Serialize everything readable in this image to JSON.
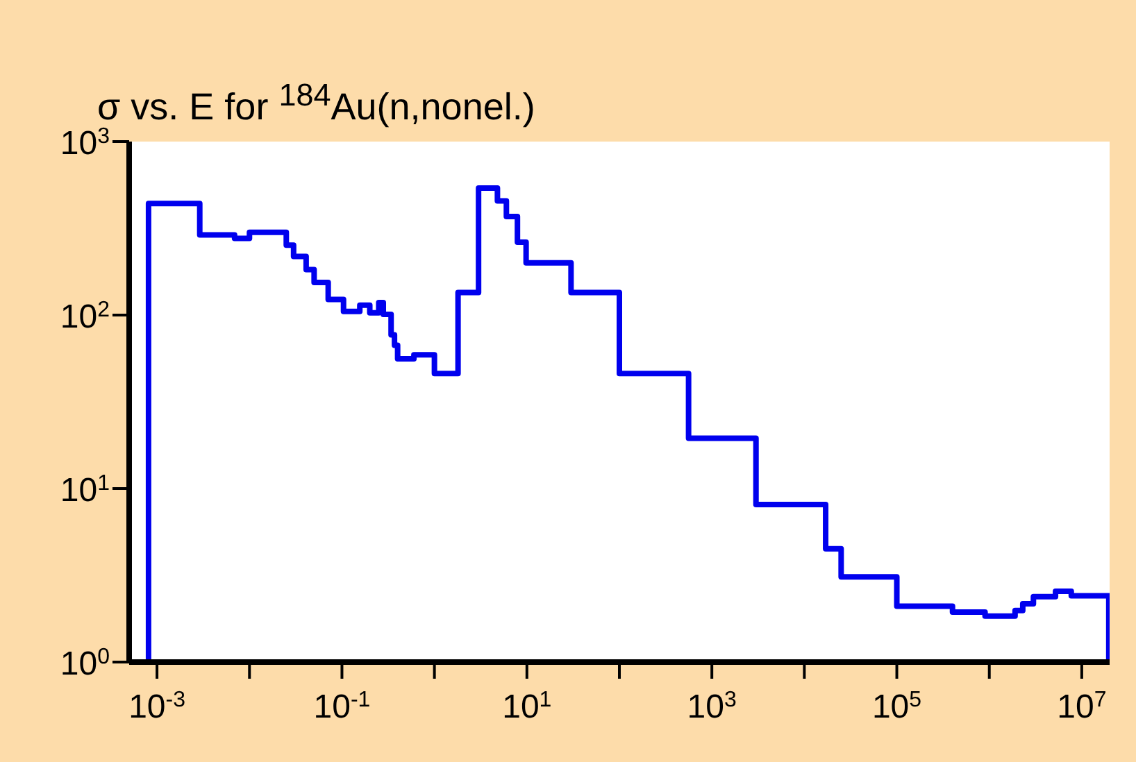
{
  "chart_data": {
    "type": "step",
    "title": "σ vs. E for $^{184}$Au(n,nonel.)",
    "log": "xy",
    "xlim": [
      0.0005,
      20000000
    ],
    "ylim": [
      1,
      1000
    ],
    "xticks": [
      {
        "value": 0.001,
        "label": "10$^{-3}$"
      },
      {
        "value": 0.01,
        "label": null
      },
      {
        "value": 0.1,
        "label": "10$^{-1}$"
      },
      {
        "value": 1,
        "label": null
      },
      {
        "value": 10,
        "label": "10$^{1}$"
      },
      {
        "value": 100,
        "label": null
      },
      {
        "value": 1000,
        "label": "10$^{3}$"
      },
      {
        "value": 10000,
        "label": null
      },
      {
        "value": 100000,
        "label": "10$^{5}$"
      },
      {
        "value": 1000000,
        "label": null
      },
      {
        "value": 10000000,
        "label": "10$^{7}$"
      }
    ],
    "yticks": [
      {
        "value": 1,
        "label": "10$^{0}$"
      },
      {
        "value": 10,
        "label": "10$^{1}$"
      },
      {
        "value": 100,
        "label": "10$^{2}$"
      },
      {
        "value": 1000,
        "label": "10$^{3}$"
      }
    ],
    "series": [
      {
        "color": "#0000ee",
        "x": [
          0.00081,
          0.00081,
          0.0029,
          0.0069,
          0.01,
          0.025,
          0.03,
          0.041,
          0.05,
          0.071,
          0.104,
          0.156,
          0.2,
          0.25,
          0.28,
          0.34,
          0.37,
          0.4,
          0.6,
          1.0,
          1.8,
          3.0,
          4.8,
          6.0,
          7.9,
          9.8,
          30,
          100,
          560,
          3000,
          17000,
          25000,
          100000,
          400000,
          900000,
          1900000,
          2300000,
          3000000,
          5200000,
          7700000,
          19600000,
          19600000
        ],
        "values": [
          1,
          440,
          290,
          277,
          300,
          253,
          218,
          183,
          154,
          123,
          105,
          114,
          103,
          118,
          101,
          77,
          67,
          56,
          59,
          46,
          135,
          540,
          455,
          370,
          263,
          200,
          135,
          46,
          19.5,
          8.1,
          4.5,
          3.1,
          2.1,
          1.94,
          1.84,
          1.98,
          2.17,
          2.38,
          2.56,
          2.41,
          2.41,
          1
        ]
      }
    ]
  }
}
